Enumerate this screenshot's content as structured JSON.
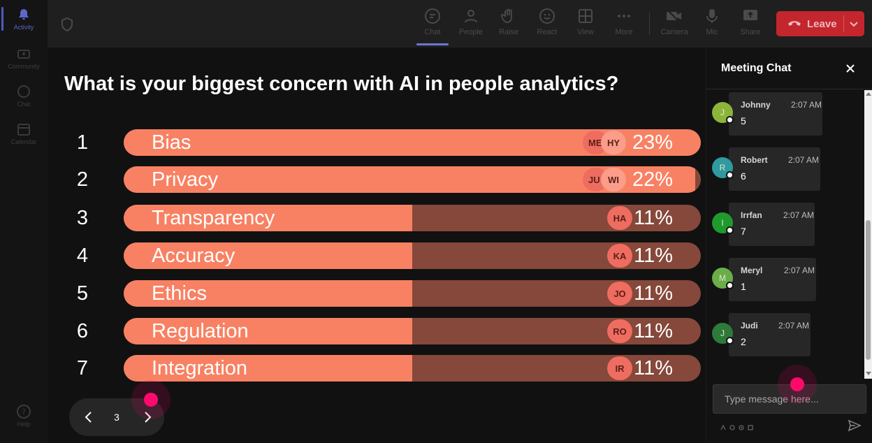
{
  "rail": {
    "items": [
      {
        "label": "Activity",
        "icon": "bell-icon",
        "active": true
      },
      {
        "label": "Community",
        "icon": "community-icon",
        "active": false
      },
      {
        "label": "Chat",
        "icon": "chat-bubble-icon",
        "active": false
      },
      {
        "label": "Calendar",
        "icon": "calendar-icon",
        "active": false
      }
    ],
    "help_label": "Help"
  },
  "toolbar": {
    "buttons": [
      {
        "label": "Chat",
        "icon": "chat-icon"
      },
      {
        "label": "People",
        "icon": "people-icon"
      },
      {
        "label": "Raise",
        "icon": "hand-icon"
      },
      {
        "label": "React",
        "icon": "smiley-icon"
      },
      {
        "label": "View",
        "icon": "grid-icon"
      },
      {
        "label": "More",
        "icon": "ellipsis-icon"
      },
      {
        "label": "Camera",
        "icon": "camera-off-icon"
      },
      {
        "label": "Mic",
        "icon": "mic-icon"
      },
      {
        "label": "Share",
        "icon": "share-icon"
      }
    ],
    "leave_label": "Leave",
    "leave_color": "#c4262e"
  },
  "poll": {
    "question": "What is your biggest concern with AI in people analytics?",
    "options": [
      {
        "rank": "1",
        "label": "Bias",
        "percent_label": "23%",
        "value": 23,
        "fill": 1.0,
        "avatars": [
          "ME",
          "HY"
        ]
      },
      {
        "rank": "2",
        "label": "Privacy",
        "percent_label": "22%",
        "value": 22,
        "fill": 0.99,
        "avatars": [
          "JU",
          "WI"
        ]
      },
      {
        "rank": "3",
        "label": "Transparency",
        "percent_label": "11%",
        "value": 11,
        "fill": 0.5,
        "avatars": [
          "HA"
        ]
      },
      {
        "rank": "4",
        "label": "Accuracy",
        "percent_label": "11%",
        "value": 11,
        "fill": 0.5,
        "avatars": [
          "KA"
        ]
      },
      {
        "rank": "5",
        "label": "Ethics",
        "percent_label": "11%",
        "value": 11,
        "fill": 0.5,
        "avatars": [
          "JO"
        ]
      },
      {
        "rank": "6",
        "label": "Regulation",
        "percent_label": "11%",
        "value": 11,
        "fill": 0.5,
        "avatars": [
          "RO"
        ]
      },
      {
        "rank": "7",
        "label": "Integration",
        "percent_label": "11%",
        "value": 11,
        "fill": 0.5,
        "avatars": [
          "IR"
        ]
      }
    ],
    "bar_color": "#f88163",
    "track_color": "#85483a"
  },
  "pager": {
    "page": "3"
  },
  "chat": {
    "title": "Meeting Chat",
    "messages": [
      {
        "initial": "J",
        "name": "Johnny",
        "time": "2:07 AM",
        "text": "5",
        "avatar_color": "#8cb43a"
      },
      {
        "initial": "R",
        "name": "Robert",
        "time": "2:07 AM",
        "text": "6",
        "avatar_color": "#2f9aa0"
      },
      {
        "initial": "I",
        "name": "Irrfan",
        "time": "2:07 AM",
        "text": "7",
        "avatar_color": "#1f9a2c"
      },
      {
        "initial": "M",
        "name": "Meryl",
        "time": "2:07 AM",
        "text": "1",
        "avatar_color": "#6aae4a"
      },
      {
        "initial": "J",
        "name": "Judi",
        "time": "2:07 AM",
        "text": "2",
        "avatar_color": "#2e7a3a"
      }
    ],
    "input_placeholder": "Type message here..."
  }
}
